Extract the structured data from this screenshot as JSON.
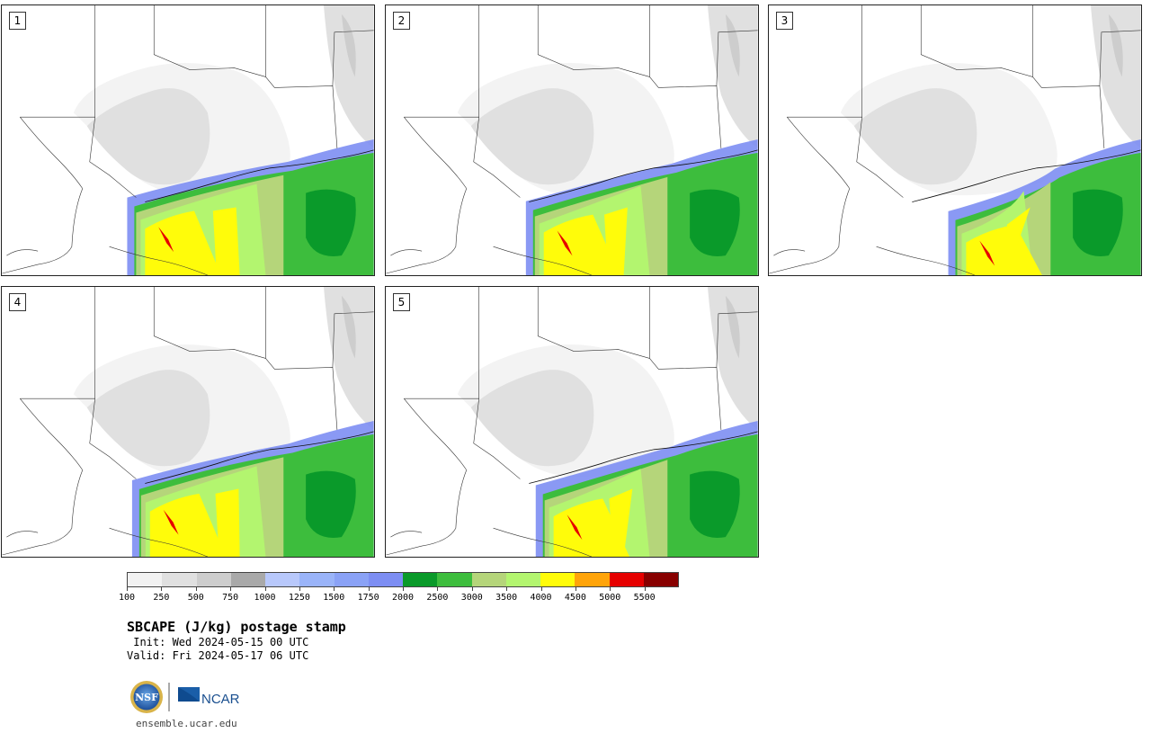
{
  "panels": [
    {
      "label": "1",
      "warm_shift": 0.0
    },
    {
      "label": "2",
      "warm_shift": 0.15
    },
    {
      "label": "3",
      "warm_shift": 0.55
    },
    {
      "label": "4",
      "warm_shift": 0.05
    },
    {
      "label": "5",
      "warm_shift": 0.25
    }
  ],
  "colorbar": {
    "colors": [
      "#f2f2f2",
      "#e0e0e0",
      "#cdcdcd",
      "#a9a9a9",
      "#b8c8fb",
      "#9ab4f9",
      "#8aa2f6",
      "#7d8ef3",
      "#0a9a2a",
      "#3dbd3d",
      "#b5d57a",
      "#b3f56f",
      "#fffc0a",
      "#ffa40a",
      "#e60000",
      "#880000"
    ],
    "ticks": [
      "100",
      "250",
      "500",
      "750",
      "1000",
      "1250",
      "1500",
      "1750",
      "2000",
      "2500",
      "3000",
      "3500",
      "4000",
      "4500",
      "5000",
      "5500"
    ]
  },
  "title": "SBCAPE (J/kg) postage stamp",
  "init": " Init: Wed 2024-05-15 00 UTC",
  "valid": "Valid: Fri 2024-05-17 06 UTC",
  "logos": {
    "nsf": "NSF",
    "ncar": "NCAR"
  },
  "footer_url": "ensemble.ucar.edu"
}
